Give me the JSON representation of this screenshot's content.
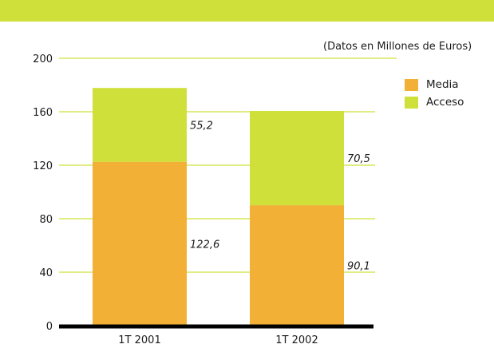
{
  "colors": {
    "top_band": "#cfe03a",
    "gridline": "#cfe03a",
    "axis": "#000000",
    "media": "#f2b136",
    "acceso": "#cfe03a"
  },
  "chart_data": {
    "type": "bar",
    "stacked": true,
    "title": "",
    "subtitle": "(Datos en Millones de Euros)",
    "xlabel": "",
    "ylabel": "",
    "categories": [
      "1T 2001",
      "1T 2002"
    ],
    "series": [
      {
        "name": "Media",
        "color": "#f2b136",
        "values": [
          122.6,
          90.1
        ],
        "labels": [
          "122,6",
          "90,1"
        ]
      },
      {
        "name": "Acceso",
        "color": "#cfe03a",
        "values": [
          55.2,
          70.5
        ],
        "labels": [
          "55,2",
          "70,5"
        ]
      }
    ],
    "ylim": [
      0,
      200
    ],
    "yticks": [
      0,
      40,
      80,
      120,
      160,
      200
    ],
    "grid": true,
    "legend": "top-right"
  }
}
